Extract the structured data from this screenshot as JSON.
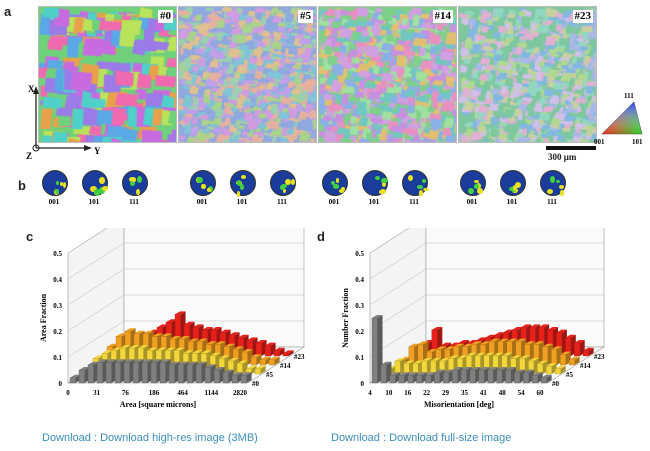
{
  "figure": {
    "panels": {
      "a": "a",
      "b": "b",
      "c": "c",
      "d": "d"
    },
    "ebsd_maps": [
      {
        "label": "#0",
        "colors": [
          "#6fd17a",
          "#e8a14a",
          "#c86be0",
          "#5aa9e6",
          "#f06ab0",
          "#b8e35a",
          "#4fd0c8",
          "#9a7be8"
        ]
      },
      {
        "label": "#5",
        "colors": [
          "#8fa8e0",
          "#d29be0",
          "#a8d48a",
          "#e6b0a0",
          "#7fc4d8",
          "#c0a0e8",
          "#9ad0b0",
          "#e0c090"
        ]
      },
      {
        "label": "#14",
        "colors": [
          "#7fd08a",
          "#d0a0e0",
          "#e0c070",
          "#8ab0e8",
          "#e890c0",
          "#a0e0a0",
          "#70c8c0",
          "#c890e0"
        ]
      },
      {
        "label": "#23",
        "colors": [
          "#7ec8a0",
          "#a8b8e8",
          "#d0c0e8",
          "#90d8c0",
          "#e0b0d0",
          "#b0d890",
          "#80b8e0",
          "#c8d0a0"
        ]
      }
    ],
    "axes": {
      "x": "X",
      "y": "Y",
      "z": "Z"
    },
    "ipf_key": {
      "top": "111",
      "left": "001",
      "right": "101"
    },
    "scale_bar": "300 μm",
    "pole_figures": {
      "labels": [
        "001",
        "101",
        "111"
      ],
      "groups": 4
    }
  },
  "chart_data": [
    {
      "type": "bar",
      "panel": "c",
      "ylabel": "Area Fraction",
      "xlabel": "Area [square microns]",
      "x_tick_labels": [
        "0",
        "31",
        "76",
        "186",
        "464",
        "1144",
        "2820"
      ],
      "y_tick_labels": [
        "0",
        "0.1",
        "0.2",
        "0.3",
        "0.4",
        "0.5"
      ],
      "ylim": [
        0,
        0.5
      ],
      "series": [
        {
          "name": "#0",
          "color": "#808080",
          "values": [
            0.02,
            0.05,
            0.07,
            0.08,
            0.08,
            0.08,
            0.08,
            0.08,
            0.08,
            0.08,
            0.08,
            0.07,
            0.07,
            0.07,
            0.07,
            0.06,
            0.05,
            0.04,
            0.03,
            0.03
          ]
        },
        {
          "name": "#5",
          "color": "#f2d63a",
          "values": [
            0.02,
            0.06,
            0.08,
            0.09,
            0.1,
            0.1,
            0.1,
            0.09,
            0.09,
            0.09,
            0.09,
            0.08,
            0.08,
            0.08,
            0.07,
            0.06,
            0.05,
            0.04,
            0.02,
            0.02
          ]
        },
        {
          "name": "#14",
          "color": "#f0a020",
          "values": [
            0.03,
            0.07,
            0.11,
            0.13,
            0.12,
            0.12,
            0.11,
            0.11,
            0.1,
            0.1,
            0.09,
            0.09,
            0.08,
            0.08,
            0.07,
            0.06,
            0.05,
            0.03,
            0.02,
            0.02
          ]
        },
        {
          "name": "#23",
          "color": "#e8201a",
          "values": [
            0.01,
            0.02,
            0.04,
            0.08,
            0.09,
            0.11,
            0.13,
            0.16,
            0.12,
            0.11,
            0.1,
            0.1,
            0.09,
            0.08,
            0.07,
            0.06,
            0.05,
            0.04,
            0.02,
            0.01
          ]
        }
      ]
    },
    {
      "type": "bar",
      "panel": "d",
      "ylabel": "Number Fraction",
      "xlabel": "Misorientation [deg]",
      "x_tick_labels": [
        "4",
        "10",
        "16",
        "22",
        "29",
        "35",
        "41",
        "48",
        "54",
        "60"
      ],
      "y_tick_labels": [
        "0",
        "0.1",
        "0.2",
        "0.3",
        "0.4",
        "0.5"
      ],
      "ylim": [
        0,
        0.5
      ],
      "series": [
        {
          "name": "#0",
          "color": "#808080",
          "values": [
            0.25,
            0.07,
            0.03,
            0.03,
            0.03,
            0.03,
            0.03,
            0.04,
            0.04,
            0.05,
            0.05,
            0.05,
            0.05,
            0.05,
            0.05,
            0.05,
            0.04,
            0.04,
            0.03,
            0.02
          ]
        },
        {
          "name": "#5",
          "color": "#f2d63a",
          "values": [
            0.02,
            0.05,
            0.04,
            0.04,
            0.05,
            0.05,
            0.05,
            0.06,
            0.06,
            0.07,
            0.07,
            0.07,
            0.07,
            0.07,
            0.06,
            0.06,
            0.05,
            0.04,
            0.03,
            0.02
          ]
        },
        {
          "name": "#14",
          "color": "#f0a020",
          "values": [
            0.02,
            0.07,
            0.08,
            0.05,
            0.06,
            0.06,
            0.07,
            0.07,
            0.08,
            0.08,
            0.09,
            0.09,
            0.09,
            0.09,
            0.08,
            0.08,
            0.07,
            0.06,
            0.04,
            0.02
          ]
        },
        {
          "name": "#23",
          "color": "#e8201a",
          "values": [
            0.02,
            0.05,
            0.1,
            0.04,
            0.04,
            0.05,
            0.05,
            0.06,
            0.07,
            0.08,
            0.09,
            0.1,
            0.11,
            0.11,
            0.11,
            0.1,
            0.09,
            0.07,
            0.05,
            0.02
          ]
        }
      ]
    }
  ],
  "links": {
    "left": "Download : Download high-res image (3MB)",
    "right": "Download : Download full-size image"
  }
}
